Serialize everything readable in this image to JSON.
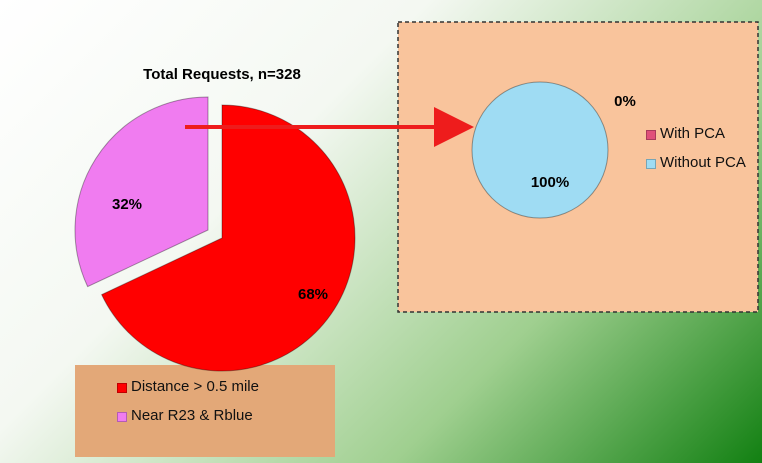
{
  "chart_data": [
    {
      "type": "pie",
      "title": "Total Requests, n=328",
      "categories": [
        "Distance > 0.5 mile",
        "Near R23 & Rblue"
      ],
      "values": [
        68,
        32
      ],
      "value_labels": [
        "68%",
        "32%"
      ],
      "colors": [
        "#ff0000",
        "#f07cf0"
      ]
    },
    {
      "type": "pie",
      "categories": [
        "With PCA",
        "Without PCA"
      ],
      "values": [
        0,
        100
      ],
      "value_labels": [
        "0%",
        "100%"
      ],
      "colors": [
        "#e0507a",
        "#9fdcf3"
      ]
    }
  ]
}
